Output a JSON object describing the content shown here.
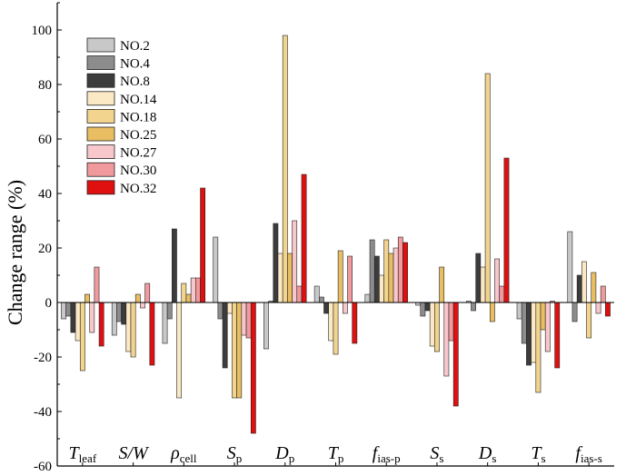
{
  "chart_data": {
    "type": "bar",
    "title": "",
    "xlabel": "",
    "ylabel": "Change range (%)",
    "ylim": [
      -60,
      110
    ],
    "yticks": [
      -60,
      -40,
      -20,
      0,
      20,
      40,
      60,
      80,
      100
    ],
    "grid": false,
    "legend_position": "top-left",
    "categories": [
      {
        "base": "T",
        "sub": "leaf"
      },
      {
        "base": "S/W",
        "sub": ""
      },
      {
        "base": "ρ",
        "sub": "cell"
      },
      {
        "base": "S",
        "sub": "p"
      },
      {
        "base": "D",
        "sub": "p"
      },
      {
        "base": "T",
        "sub": "p"
      },
      {
        "base": "f",
        "sub": "ias-p"
      },
      {
        "base": "S",
        "sub": "s"
      },
      {
        "base": "D",
        "sub": "s"
      },
      {
        "base": "T",
        "sub": "s"
      },
      {
        "base": "f",
        "sub": "ias-s"
      }
    ],
    "series": [
      {
        "name": "NO.2",
        "color": "#c8c8c8",
        "values": [
          -6,
          -12,
          -15,
          24,
          -17,
          6,
          3,
          -1,
          0.5,
          -6,
          26
        ]
      },
      {
        "name": "NO.4",
        "color": "#8c8c8c",
        "values": [
          -5,
          -7,
          -6,
          -6,
          0.5,
          2,
          23,
          -5,
          -3,
          -15,
          -7
        ]
      },
      {
        "name": "NO.8",
        "color": "#3c3c3c",
        "values": [
          -11,
          -8,
          27,
          -24,
          29,
          -4,
          17,
          -3,
          18,
          -23,
          10
        ]
      },
      {
        "name": "NO.14",
        "color": "#fbe8c4",
        "values": [
          -14,
          -18,
          -35,
          -4,
          18,
          -14,
          10,
          -16,
          13,
          -22,
          15
        ]
      },
      {
        "name": "NO.18",
        "color": "#f2d48e",
        "values": [
          -25,
          -20,
          7,
          -35,
          98,
          -19,
          23,
          -18,
          84,
          -33,
          -13
        ]
      },
      {
        "name": "NO.25",
        "color": "#e9be63",
        "values": [
          3,
          3,
          3,
          -35,
          18,
          19,
          18,
          13,
          -7,
          -10,
          11
        ]
      },
      {
        "name": "NO.27",
        "color": "#f7c7cc",
        "values": [
          -11,
          -2,
          9,
          -12,
          30,
          -4,
          20,
          -27,
          16,
          -18,
          -4
        ]
      },
      {
        "name": "NO.30",
        "color": "#f09a9e",
        "values": [
          13,
          7,
          9,
          -13,
          6,
          17,
          24,
          -14,
          6,
          0.5,
          6
        ]
      },
      {
        "name": "NO.32",
        "color": "#e01010",
        "values": [
          -16,
          -23,
          42,
          -48,
          47,
          -15,
          22,
          -38,
          53,
          -24,
          -5
        ]
      }
    ]
  }
}
